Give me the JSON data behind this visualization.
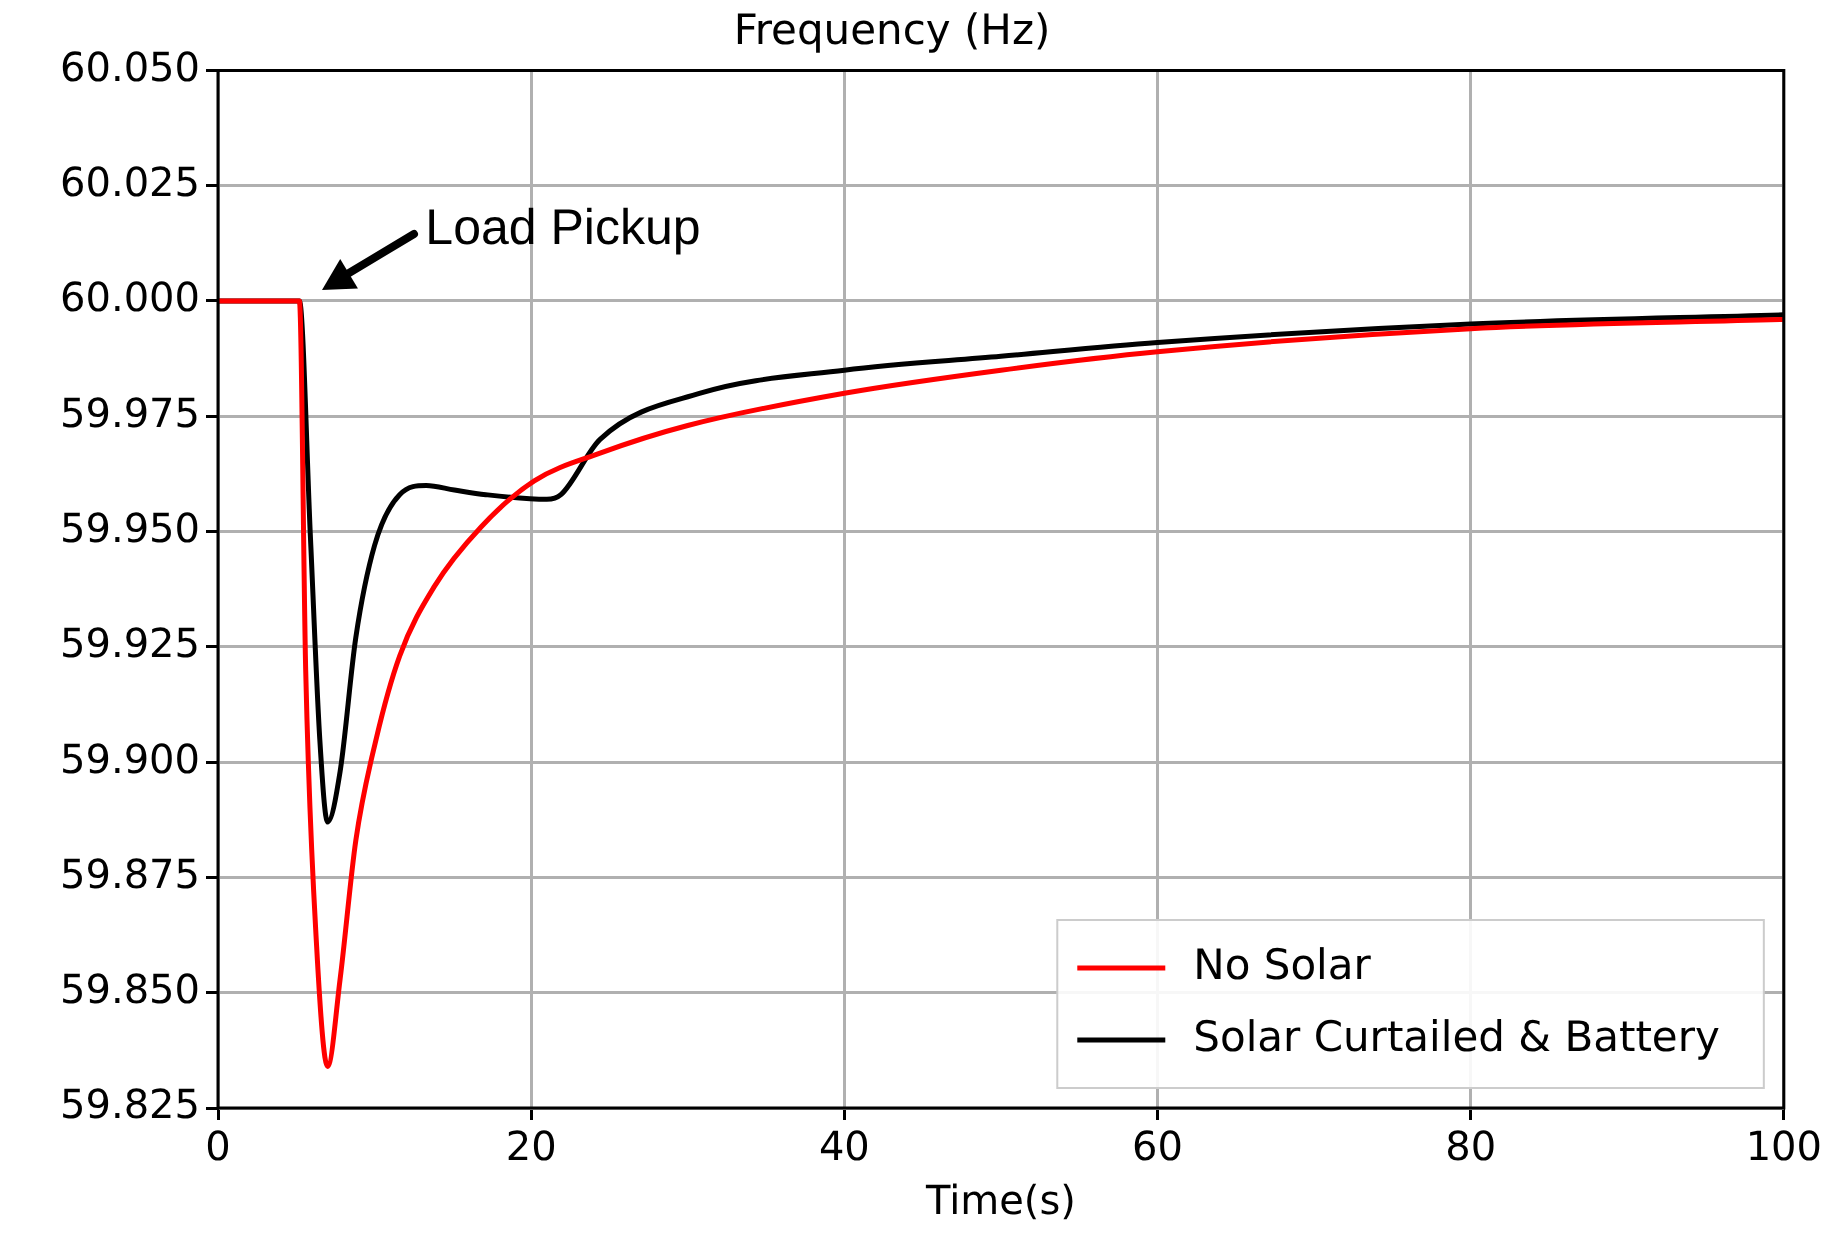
{
  "chart_data": {
    "type": "line",
    "title": "Frequency (Hz)",
    "xlabel": "Time(s)",
    "xlim": [
      0,
      100
    ],
    "xticks": [
      0,
      20,
      40,
      60,
      80,
      100
    ],
    "ylim": [
      59.825,
      60.05
    ],
    "yticks": [
      59.825,
      {
        "value": 59.85,
        "label": "59.850"
      },
      59.875,
      {
        "value": 59.9,
        "label": "59.900"
      },
      59.925,
      {
        "value": 59.95,
        "label": "59.950"
      },
      59.975,
      {
        "value": 60,
        "label": "60.000"
      },
      60.025,
      {
        "value": 60.05,
        "label": "60.050"
      }
    ],
    "grid": true,
    "legend": "bottom right",
    "marker": "none",
    "line_style": "solid",
    "annotations": [
      "Load Pickup"
    ],
    "series": [
      {
        "name": "No Solar",
        "color": "#ff0000",
        "x": [
          0,
          5.2,
          5.6,
          6.3,
          7.0,
          7.8,
          8.8,
          10.1,
          11.6,
          13.8,
          16.8,
          20.2,
          24.4,
          30,
          40,
          50,
          60,
          80,
          100
        ],
        "values": [
          60.0,
          60.0,
          59.92,
          59.86,
          59.834,
          59.853,
          59.883,
          59.905,
          59.923,
          59.938,
          59.951,
          59.961,
          59.967,
          59.973,
          59.98,
          59.985,
          59.989,
          59.994,
          59.996
        ]
      },
      {
        "name": "Solar Curtailed & Battery",
        "color": "#000000",
        "x": [
          0,
          5.2,
          5.9,
          6.5,
          7.0,
          7.8,
          8.8,
          10.0,
          11.6,
          13.3,
          15.1,
          17.1,
          21.0,
          21.9,
          24.4,
          30.8,
          40,
          50,
          60,
          80,
          100
        ],
        "values": [
          60.0,
          60.0,
          59.949,
          59.905,
          59.887,
          59.898,
          59.927,
          59.947,
          59.958,
          59.96,
          59.959,
          59.958,
          59.957,
          59.958,
          59.97,
          59.98,
          59.985,
          59.988,
          59.991,
          59.995,
          59.997
        ]
      }
    ]
  }
}
